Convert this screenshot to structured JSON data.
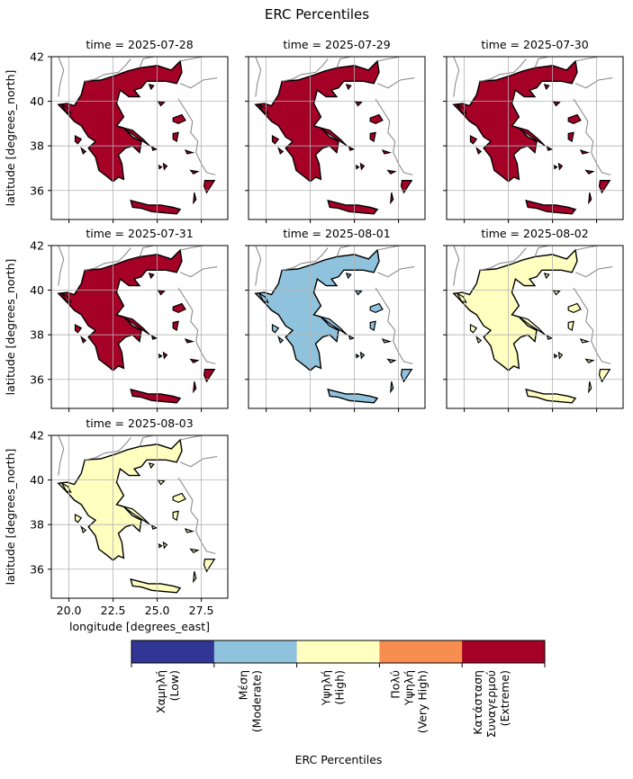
{
  "figure": {
    "title": "ERC Percentiles",
    "colorbar_label": "ERC Percentiles"
  },
  "chart_data": {
    "type": "heatmap",
    "title": "ERC Percentiles",
    "xlabel": "longitude [degrees_east]",
    "ylabel": "latitude [degrees_north]",
    "xlim": [
      19.0,
      29.0
    ],
    "ylim": [
      34.7,
      42.0
    ],
    "xticks": [
      20.0,
      22.5,
      25.0,
      27.5
    ],
    "xtick_labels": [
      "20.0",
      "22.5",
      "25.0",
      "27.5"
    ],
    "yticks": [
      36,
      38,
      40,
      42
    ],
    "ytick_labels": [
      "36",
      "38",
      "40",
      "42"
    ],
    "grid": true,
    "panels": [
      {
        "label": "time = 2025-07-28",
        "dominant_class": "Extreme"
      },
      {
        "label": "time = 2025-07-29",
        "dominant_class": "Extreme"
      },
      {
        "label": "time = 2025-07-30",
        "dominant_class": "Extreme"
      },
      {
        "label": "time = 2025-07-31",
        "dominant_class": "Extreme"
      },
      {
        "label": "time = 2025-08-01",
        "dominant_class": "Moderate"
      },
      {
        "label": "time = 2025-08-02",
        "dominant_class": "High"
      },
      {
        "label": "time = 2025-08-03",
        "dominant_class": "High"
      }
    ],
    "colorbar": {
      "label": "ERC Percentiles",
      "classes": [
        {
          "greek": "Χαμηλή",
          "english": "(Low)",
          "color": "#313695"
        },
        {
          "greek": "Μέση",
          "english": "(Moderate)",
          "color": "#8fc3dd"
        },
        {
          "greek": "Υψηλή",
          "english": "(High)",
          "color": "#ffffbf"
        },
        {
          "greek": "Πολύ Υψηλή",
          "english": "(Very High)",
          "color": "#f88d51"
        },
        {
          "greek": "Κατάσταση Συναγερμού",
          "english": "(Extreme)",
          "color": "#a50026"
        }
      ]
    }
  }
}
